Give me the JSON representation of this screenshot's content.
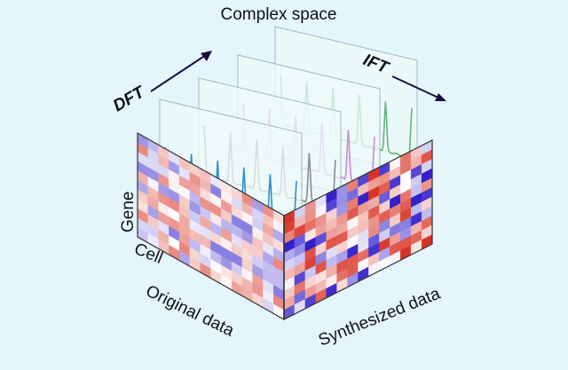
{
  "labels": {
    "complex_space": "Complex space",
    "dft": "DFT",
    "ift": "IFT",
    "gene": "Gene",
    "cell": "Cell",
    "original_data": "Original data",
    "synthesized_data": "Synthesized data"
  },
  "colors": {
    "background": "#e4f5fc",
    "panel_fill": "#eef9f8",
    "panel_stroke": "#9fb8c0",
    "arrow": "#1a1040",
    "waves": [
      "#2a8fcf",
      "#8c8c8c",
      "#c88ad8",
      "#5fb878"
    ]
  }
}
